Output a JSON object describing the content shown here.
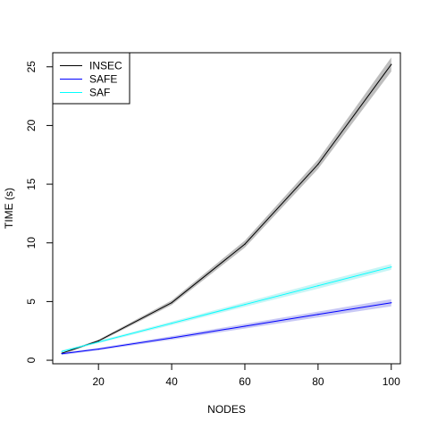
{
  "chart_data": {
    "type": "line",
    "title": "",
    "xlabel": "NODES",
    "ylabel": "TIME (s)",
    "xlim": [
      7.5,
      102.5
    ],
    "ylim": [
      -0.3,
      26.2
    ],
    "x_ticks": [
      20,
      40,
      60,
      80,
      100
    ],
    "y_ticks": [
      0,
      5,
      10,
      15,
      20,
      25
    ],
    "x_tick_labels": [
      "20",
      "40",
      "60",
      "80",
      "100"
    ],
    "y_tick_labels": [
      "0",
      "5",
      "10",
      "15",
      "20",
      "25"
    ],
    "x": [
      10,
      20,
      40,
      60,
      80,
      100
    ],
    "series": [
      {
        "name": "INSEC",
        "color": "#000000",
        "band_color": "#bebebe",
        "values": [
          0.6,
          1.65,
          4.9,
          9.9,
          16.7,
          25.2
        ],
        "lower": [
          0.5,
          1.55,
          4.7,
          9.6,
          16.3,
          24.6
        ],
        "upper": [
          0.7,
          1.75,
          5.1,
          10.2,
          17.1,
          25.8
        ]
      },
      {
        "name": "SAFE",
        "color": "#0000ff",
        "band_color": "#c8c8f5",
        "values": [
          0.55,
          0.95,
          1.9,
          2.9,
          3.9,
          4.9
        ],
        "lower": [
          0.45,
          0.85,
          1.75,
          2.7,
          3.65,
          4.6
        ],
        "upper": [
          0.65,
          1.05,
          2.05,
          3.1,
          4.15,
          5.2
        ]
      },
      {
        "name": "SAF",
        "color": "#00ffff",
        "band_color": "#c8f5f5",
        "values": [
          0.75,
          1.55,
          3.15,
          4.75,
          6.35,
          7.95
        ],
        "lower": [
          0.65,
          1.45,
          3.0,
          4.55,
          6.1,
          7.7
        ],
        "upper": [
          0.85,
          1.65,
          3.3,
          4.95,
          6.6,
          8.2
        ]
      }
    ],
    "legend": {
      "position": "top-left",
      "entries": [
        "INSEC",
        "SAFE",
        "SAF"
      ]
    },
    "grid": false
  }
}
